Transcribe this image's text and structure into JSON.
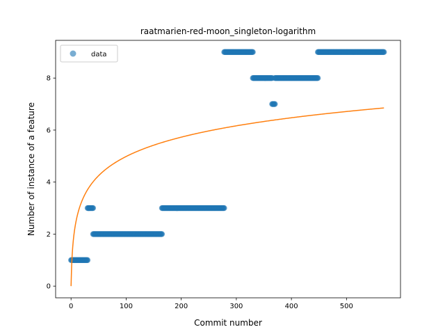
{
  "chart_data": {
    "type": "scatter",
    "title": "raatmarien-red-moon_singleton-logarithm",
    "xlabel": "Commit number",
    "ylabel": "Number of instance of a feature",
    "xlim": [
      -28,
      598
    ],
    "ylim": [
      -0.45,
      9.45
    ],
    "xticks": [
      0,
      100,
      200,
      300,
      400,
      500
    ],
    "yticks": [
      0,
      2,
      4,
      6,
      8
    ],
    "grid": false,
    "legend": {
      "position": "top-left",
      "entries": [
        "data"
      ]
    },
    "scatter_color": "#1f77b4",
    "fit_color": "#ff7f0e",
    "series": [
      {
        "name": "data",
        "kind": "scatter",
        "runs": [
          {
            "x_start": 0,
            "x_end": 30,
            "y": 1
          },
          {
            "x_start": 30,
            "x_end": 40,
            "y": 3
          },
          {
            "x_start": 40,
            "x_end": 165,
            "y": 2
          },
          {
            "x_start": 165,
            "x_end": 278,
            "y": 3
          },
          {
            "x_start": 278,
            "x_end": 330,
            "y": 9
          },
          {
            "x_start": 330,
            "x_end": 365,
            "y": 8
          },
          {
            "x_start": 365,
            "x_end": 370,
            "y": 7
          },
          {
            "x_start": 370,
            "x_end": 448,
            "y": 8
          },
          {
            "x_start": 448,
            "x_end": 568,
            "y": 9
          }
        ]
      },
      {
        "kind": "line",
        "function": "1.08 * ln(1 + x)",
        "x_range": [
          0,
          568
        ]
      }
    ]
  }
}
